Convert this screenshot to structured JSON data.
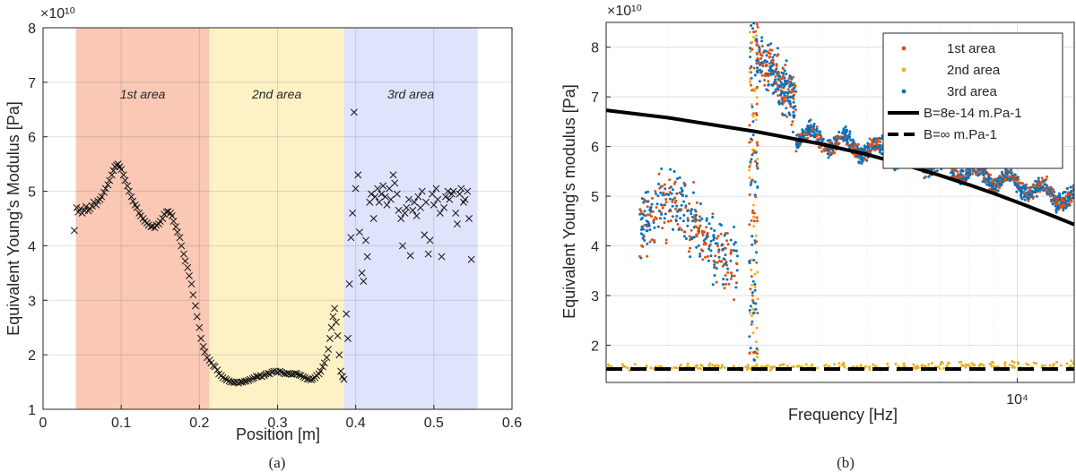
{
  "figure": {
    "left_caption": "(a)",
    "right_caption": "(b)"
  },
  "chart_data": [
    {
      "type": "scatter",
      "marker": "x",
      "ylabel": "Equivalent Young's Modulus [Pa]",
      "xlabel": "Position [m]",
      "exponent_label": "×10¹⁰",
      "xlim": [
        0,
        0.6
      ],
      "ylim": [
        1,
        8
      ],
      "xticks": [
        "0",
        "0.1",
        "0.2",
        "0.3",
        "0.4",
        "0.5",
        "0.6"
      ],
      "yticks": [
        "1",
        "2",
        "3",
        "4",
        "5",
        "6",
        "7",
        "8"
      ],
      "grid": true,
      "regions": [
        {
          "label": "1st area",
          "x0": 0.042,
          "x1": 0.213,
          "color": "#f9c9b6"
        },
        {
          "label": "2nd area",
          "x0": 0.213,
          "x1": 0.385,
          "color": "#fdf1c6"
        },
        {
          "label": "3rd area",
          "x0": 0.385,
          "x1": 0.556,
          "color": "#dfe3fb"
        }
      ],
      "points": [
        [
          0.04,
          4.28
        ],
        [
          0.043,
          4.7
        ],
        [
          0.045,
          4.62
        ],
        [
          0.048,
          4.68
        ],
        [
          0.05,
          4.6
        ],
        [
          0.053,
          4.65
        ],
        [
          0.055,
          4.72
        ],
        [
          0.058,
          4.64
        ],
        [
          0.06,
          4.68
        ],
        [
          0.063,
          4.73
        ],
        [
          0.065,
          4.8
        ],
        [
          0.068,
          4.75
        ],
        [
          0.07,
          4.82
        ],
        [
          0.073,
          4.85
        ],
        [
          0.075,
          4.9
        ],
        [
          0.078,
          4.98
        ],
        [
          0.08,
          5.05
        ],
        [
          0.083,
          5.12
        ],
        [
          0.085,
          5.2
        ],
        [
          0.088,
          5.3
        ],
        [
          0.09,
          5.38
        ],
        [
          0.092,
          5.45
        ],
        [
          0.094,
          5.48
        ],
        [
          0.096,
          5.5
        ],
        [
          0.098,
          5.45
        ],
        [
          0.1,
          5.4
        ],
        [
          0.103,
          5.3
        ],
        [
          0.105,
          5.2
        ],
        [
          0.108,
          5.1
        ],
        [
          0.11,
          5.0
        ],
        [
          0.113,
          4.9
        ],
        [
          0.115,
          4.82
        ],
        [
          0.118,
          4.75
        ],
        [
          0.12,
          4.7
        ],
        [
          0.123,
          4.6
        ],
        [
          0.125,
          4.55
        ],
        [
          0.128,
          4.5
        ],
        [
          0.13,
          4.45
        ],
        [
          0.133,
          4.42
        ],
        [
          0.135,
          4.38
        ],
        [
          0.138,
          4.35
        ],
        [
          0.14,
          4.36
        ],
        [
          0.143,
          4.33
        ],
        [
          0.145,
          4.38
        ],
        [
          0.148,
          4.4
        ],
        [
          0.15,
          4.45
        ],
        [
          0.153,
          4.5
        ],
        [
          0.155,
          4.58
        ],
        [
          0.158,
          4.62
        ],
        [
          0.16,
          4.63
        ],
        [
          0.163,
          4.6
        ],
        [
          0.165,
          4.55
        ],
        [
          0.167,
          4.45
        ],
        [
          0.17,
          4.35
        ],
        [
          0.172,
          4.25
        ],
        [
          0.175,
          4.15
        ],
        [
          0.177,
          4.0
        ],
        [
          0.18,
          3.85
        ],
        [
          0.182,
          3.72
        ],
        [
          0.185,
          3.6
        ],
        [
          0.187,
          3.45
        ],
        [
          0.19,
          3.3
        ],
        [
          0.192,
          3.1
        ],
        [
          0.195,
          2.9
        ],
        [
          0.197,
          2.7
        ],
        [
          0.2,
          2.5
        ],
        [
          0.202,
          2.3
        ],
        [
          0.205,
          2.15
        ],
        [
          0.207,
          2.05
        ],
        [
          0.21,
          1.95
        ],
        [
          0.213,
          1.9
        ],
        [
          0.215,
          1.85
        ],
        [
          0.218,
          1.8
        ],
        [
          0.22,
          1.78
        ],
        [
          0.223,
          1.72
        ],
        [
          0.225,
          1.65
        ],
        [
          0.228,
          1.62
        ],
        [
          0.23,
          1.58
        ],
        [
          0.233,
          1.56
        ],
        [
          0.235,
          1.54
        ],
        [
          0.238,
          1.52
        ],
        [
          0.24,
          1.5
        ],
        [
          0.243,
          1.5
        ],
        [
          0.245,
          1.49
        ],
        [
          0.248,
          1.5
        ],
        [
          0.25,
          1.48
        ],
        [
          0.253,
          1.5
        ],
        [
          0.255,
          1.5
        ],
        [
          0.258,
          1.51
        ],
        [
          0.26,
          1.52
        ],
        [
          0.263,
          1.53
        ],
        [
          0.265,
          1.55
        ],
        [
          0.268,
          1.56
        ],
        [
          0.27,
          1.58
        ],
        [
          0.273,
          1.6
        ],
        [
          0.275,
          1.6
        ],
        [
          0.278,
          1.62
        ],
        [
          0.28,
          1.6
        ],
        [
          0.283,
          1.62
        ],
        [
          0.285,
          1.65
        ],
        [
          0.288,
          1.66
        ],
        [
          0.29,
          1.65
        ],
        [
          0.293,
          1.68
        ],
        [
          0.295,
          1.7
        ],
        [
          0.298,
          1.7
        ],
        [
          0.3,
          1.68
        ],
        [
          0.303,
          1.7
        ],
        [
          0.305,
          1.68
        ],
        [
          0.308,
          1.66
        ],
        [
          0.31,
          1.65
        ],
        [
          0.313,
          1.66
        ],
        [
          0.315,
          1.65
        ],
        [
          0.318,
          1.64
        ],
        [
          0.32,
          1.65
        ],
        [
          0.323,
          1.66
        ],
        [
          0.325,
          1.65
        ],
        [
          0.328,
          1.63
        ],
        [
          0.33,
          1.62
        ],
        [
          0.333,
          1.6
        ],
        [
          0.335,
          1.58
        ],
        [
          0.338,
          1.56
        ],
        [
          0.34,
          1.55
        ],
        [
          0.343,
          1.54
        ],
        [
          0.345,
          1.56
        ],
        [
          0.348,
          1.58
        ],
        [
          0.35,
          1.62
        ],
        [
          0.353,
          1.65
        ],
        [
          0.355,
          1.7
        ],
        [
          0.358,
          1.78
        ],
        [
          0.36,
          1.85
        ],
        [
          0.363,
          1.95
        ],
        [
          0.365,
          2.1
        ],
        [
          0.367,
          2.3
        ],
        [
          0.369,
          2.5
        ],
        [
          0.371,
          2.7
        ],
        [
          0.373,
          2.85
        ],
        [
          0.375,
          2.6
        ],
        [
          0.377,
          2.35
        ],
        [
          0.379,
          2.0
        ],
        [
          0.381,
          1.7
        ],
        [
          0.383,
          1.6
        ],
        [
          0.385,
          1.55
        ],
        [
          0.388,
          2.75
        ],
        [
          0.39,
          2.3
        ],
        [
          0.392,
          3.3
        ],
        [
          0.394,
          4.15
        ],
        [
          0.396,
          4.6
        ],
        [
          0.398,
          6.45
        ],
        [
          0.4,
          5.05
        ],
        [
          0.403,
          5.3
        ],
        [
          0.405,
          4.25
        ],
        [
          0.408,
          3.5
        ],
        [
          0.41,
          3.35
        ],
        [
          0.413,
          4.1
        ],
        [
          0.415,
          3.8
        ],
        [
          0.418,
          4.8
        ],
        [
          0.42,
          4.95
        ],
        [
          0.423,
          4.5
        ],
        [
          0.425,
          4.9
        ],
        [
          0.428,
          5.05
        ],
        [
          0.43,
          4.8
        ],
        [
          0.433,
          4.95
        ],
        [
          0.435,
          5.1
        ],
        [
          0.438,
          4.9
        ],
        [
          0.44,
          4.75
        ],
        [
          0.443,
          5.05
        ],
        [
          0.445,
          4.85
        ],
        [
          0.448,
          5.3
        ],
        [
          0.45,
          5.15
        ],
        [
          0.453,
          4.95
        ],
        [
          0.455,
          4.65
        ],
        [
          0.458,
          4.5
        ],
        [
          0.46,
          4.0
        ],
        [
          0.463,
          4.6
        ],
        [
          0.465,
          4.7
        ],
        [
          0.468,
          4.85
        ],
        [
          0.47,
          3.82
        ],
        [
          0.473,
          4.65
        ],
        [
          0.475,
          4.8
        ],
        [
          0.478,
          4.55
        ],
        [
          0.48,
          4.9
        ],
        [
          0.483,
          4.7
        ],
        [
          0.485,
          5.0
        ],
        [
          0.488,
          4.2
        ],
        [
          0.49,
          4.8
        ],
        [
          0.493,
          3.85
        ],
        [
          0.495,
          4.1
        ],
        [
          0.498,
          4.95
        ],
        [
          0.5,
          4.75
        ],
        [
          0.503,
          5.05
        ],
        [
          0.505,
          4.85
        ],
        [
          0.508,
          4.6
        ],
        [
          0.51,
          3.8
        ],
        [
          0.513,
          4.7
        ],
        [
          0.515,
          4.9
        ],
        [
          0.518,
          5.0
        ],
        [
          0.52,
          4.85
        ],
        [
          0.523,
          4.95
        ],
        [
          0.525,
          5.0
        ],
        [
          0.528,
          4.6
        ],
        [
          0.53,
          4.4
        ],
        [
          0.533,
          4.95
        ],
        [
          0.535,
          5.05
        ],
        [
          0.538,
          4.8
        ],
        [
          0.54,
          4.85
        ],
        [
          0.543,
          5.0
        ],
        [
          0.545,
          4.5
        ],
        [
          0.548,
          3.75
        ]
      ]
    },
    {
      "type": "scatter",
      "xscale": "log",
      "ylabel": "Equivalent Young's modulus [Pa]",
      "xlabel": "Frequency [Hz]",
      "exponent_label": "×10¹⁰",
      "xlim": [
        1500,
        13000
      ],
      "ylim": [
        1.25,
        8.5
      ],
      "xticks": [
        "10⁴"
      ],
      "yticks": [
        "2",
        "3",
        "4",
        "5",
        "6",
        "7",
        "8"
      ],
      "grid": true,
      "legend_position": "top-right",
      "series": [
        {
          "name": "1st area",
          "color": "#d95319"
        },
        {
          "name": "2nd area",
          "color": "#edb120"
        },
        {
          "name": "3rd area",
          "color": "#0072bd"
        }
      ],
      "lines": [
        {
          "name": "B=8e-14 m.Pa-1",
          "style": "solid",
          "x": [
            1500,
            2000,
            3000,
            4000,
            5000,
            6000,
            7000,
            8000,
            9000,
            10000,
            11000,
            12000,
            13000
          ],
          "y": [
            6.73,
            6.58,
            6.3,
            6.06,
            5.84,
            5.62,
            5.42,
            5.23,
            5.05,
            4.88,
            4.72,
            4.57,
            4.43
          ]
        },
        {
          "name": "B=∞ m.Pa-1",
          "style": "dashed",
          "x": [
            1500,
            13000
          ],
          "y": [
            1.52,
            1.52
          ]
        }
      ]
    }
  ]
}
